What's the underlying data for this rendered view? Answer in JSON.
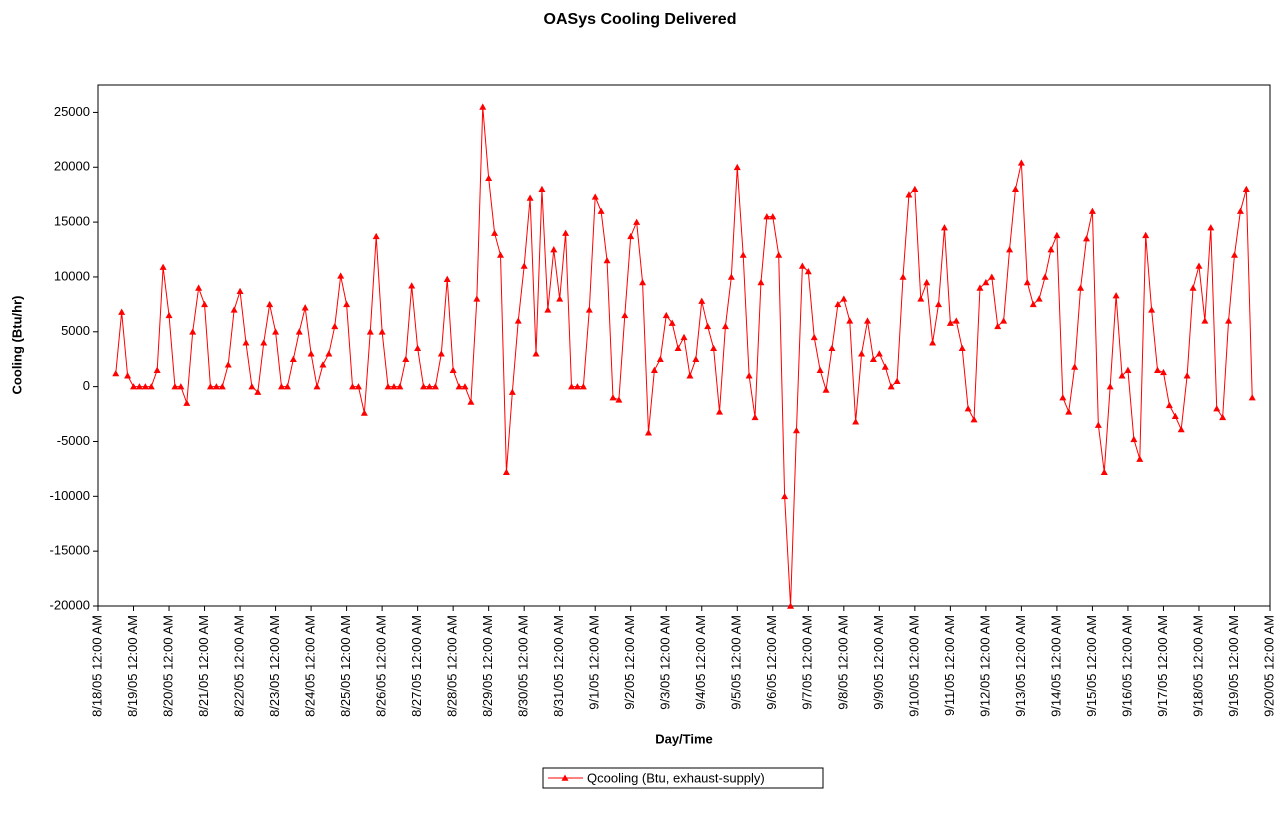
{
  "chart_data": {
    "type": "line",
    "title": "OASys Cooling Delivered",
    "xlabel": "Day/Time",
    "ylabel": "Cooling (Btu/hr)",
    "legend": "bottom",
    "marker": "triangle",
    "xlim": [
      0,
      792
    ],
    "ylim": [
      -20000,
      27500
    ],
    "yticks": [
      -20000,
      -15000,
      -10000,
      -5000,
      0,
      5000,
      10000,
      15000,
      20000,
      25000
    ],
    "xticks": [
      {
        "value": 0,
        "label": "8/18/05 12:00 AM"
      },
      {
        "value": 24,
        "label": "8/19/05 12:00 AM"
      },
      {
        "value": 48,
        "label": "8/20/05 12:00 AM"
      },
      {
        "value": 72,
        "label": "8/21/05 12:00 AM"
      },
      {
        "value": 96,
        "label": "8/22/05 12:00 AM"
      },
      {
        "value": 120,
        "label": "8/23/05 12:00 AM"
      },
      {
        "value": 144,
        "label": "8/24/05 12:00 AM"
      },
      {
        "value": 168,
        "label": "8/25/05 12:00 AM"
      },
      {
        "value": 192,
        "label": "8/26/05 12:00 AM"
      },
      {
        "value": 216,
        "label": "8/27/05 12:00 AM"
      },
      {
        "value": 240,
        "label": "8/28/05 12:00 AM"
      },
      {
        "value": 264,
        "label": "8/29/05 12:00 AM"
      },
      {
        "value": 288,
        "label": "8/30/05 12:00 AM"
      },
      {
        "value": 312,
        "label": "8/31/05 12:00 AM"
      },
      {
        "value": 336,
        "label": "9/1/05 12:00 AM"
      },
      {
        "value": 360,
        "label": "9/2/05 12:00 AM"
      },
      {
        "value": 384,
        "label": "9/3/05 12:00 AM"
      },
      {
        "value": 408,
        "label": "9/4/05 12:00 AM"
      },
      {
        "value": 432,
        "label": "9/5/05 12:00 AM"
      },
      {
        "value": 456,
        "label": "9/6/05 12:00 AM"
      },
      {
        "value": 480,
        "label": "9/7/05 12:00 AM"
      },
      {
        "value": 504,
        "label": "9/8/05 12:00 AM"
      },
      {
        "value": 528,
        "label": "9/9/05 12:00 AM"
      },
      {
        "value": 552,
        "label": "9/10/05 12:00 AM"
      },
      {
        "value": 576,
        "label": "9/11/05 12:00 AM"
      },
      {
        "value": 600,
        "label": "9/12/05 12:00 AM"
      },
      {
        "value": 624,
        "label": "9/13/05 12:00 AM"
      },
      {
        "value": 648,
        "label": "9/14/05 12:00 AM"
      },
      {
        "value": 672,
        "label": "9/15/05 12:00 AM"
      },
      {
        "value": 696,
        "label": "9/16/05 12:00 AM"
      },
      {
        "value": 720,
        "label": "9/17/05 12:00 AM"
      },
      {
        "value": 744,
        "label": "9/18/05 12:00 AM"
      },
      {
        "value": 768,
        "label": "9/19/05 12:00 AM"
      },
      {
        "value": 792,
        "label": "9/20/05 12:00 AM"
      }
    ],
    "x": [
      12,
      16,
      20,
      24,
      28,
      32,
      36,
      40,
      44,
      48,
      52,
      56,
      60,
      64,
      68,
      72,
      76,
      80,
      84,
      88,
      92,
      96,
      100,
      104,
      108,
      112,
      116,
      120,
      124,
      128,
      132,
      136,
      140,
      144,
      148,
      152,
      156,
      160,
      164,
      168,
      172,
      176,
      180,
      184,
      188,
      192,
      196,
      200,
      204,
      208,
      212,
      216,
      220,
      224,
      228,
      232,
      236,
      240,
      244,
      248,
      252,
      256,
      260,
      264,
      268,
      272,
      276,
      280,
      284,
      288,
      292,
      296,
      300,
      304,
      308,
      312,
      316,
      320,
      324,
      328,
      332,
      336,
      340,
      344,
      348,
      352,
      356,
      360,
      364,
      368,
      372,
      376,
      380,
      384,
      388,
      392,
      396,
      400,
      404,
      408,
      412,
      416,
      420,
      424,
      428,
      432,
      436,
      440,
      444,
      448,
      452,
      456,
      460,
      464,
      468,
      472,
      476,
      480,
      484,
      488,
      492,
      496,
      500,
      504,
      508,
      512,
      516,
      520,
      524,
      528,
      532,
      536,
      540,
      544,
      548,
      552,
      556,
      560,
      564,
      568,
      572,
      576,
      580,
      584,
      588,
      592,
      596,
      600,
      604,
      608,
      612,
      616,
      620,
      624,
      628,
      632,
      636,
      640,
      644,
      648,
      652,
      656,
      660,
      664,
      668,
      672,
      676,
      680,
      684,
      688,
      692,
      696,
      700,
      704,
      708,
      712,
      716,
      720,
      724,
      728,
      732,
      736,
      740,
      744,
      748,
      752,
      756,
      760,
      764,
      768,
      772,
      776,
      780
    ],
    "series": [
      {
        "name": "Qcooling (Btu, exhaust-supply)",
        "color": "#ff0000",
        "values": [
          1200,
          6800,
          1000,
          0,
          0,
          0,
          0,
          1500,
          10900,
          6500,
          0,
          0,
          -1500,
          5000,
          9000,
          7500,
          0,
          0,
          0,
          2000,
          7000,
          8700,
          4000,
          0,
          -500,
          4000,
          7500,
          5000,
          0,
          0,
          2500,
          5000,
          7200,
          3000,
          0,
          2000,
          3000,
          5500,
          10100,
          7500,
          0,
          0,
          -2400,
          5000,
          13700,
          5000,
          0,
          0,
          0,
          2500,
          9200,
          3500,
          0,
          0,
          0,
          3000,
          9800,
          1500,
          0,
          0,
          -1400,
          8000,
          25500,
          19000,
          14000,
          12000,
          -7800,
          -500,
          6000,
          11000,
          17200,
          3000,
          18000,
          7000,
          12500,
          8000,
          14000,
          0,
          0,
          0,
          7000,
          17300,
          16000,
          11500,
          -1000,
          -1200,
          6500,
          13700,
          15000,
          9500,
          -4200,
          1500,
          2500,
          6500,
          5800,
          3500,
          4500,
          1000,
          2500,
          7800,
          5500,
          3500,
          -2300,
          5500,
          10000,
          20000,
          12000,
          1000,
          -2800,
          9500,
          15500,
          15500,
          12000,
          -10000,
          -20000,
          -4000,
          11000,
          10500,
          4500,
          1500,
          -300,
          3500,
          7500,
          8000,
          6000,
          -3200,
          3000,
          6000,
          2500,
          3000,
          1800,
          0,
          500,
          10000,
          17500,
          18000,
          8000,
          9500,
          4000,
          7500,
          14500,
          5800,
          6000,
          3500,
          -2000,
          -3000,
          9000,
          9500,
          10000,
          5500,
          6000,
          12500,
          18000,
          20400,
          9500,
          7500,
          8000,
          10000,
          12500,
          13800,
          -1000,
          -2300,
          1800,
          9000,
          13500,
          16000,
          -3500,
          -7800,
          0,
          8300,
          1000,
          1500,
          -4800,
          -6600,
          13800,
          7000,
          1500,
          1300,
          -1700,
          -2700,
          -3900,
          1000,
          9000,
          11000,
          6000,
          14500,
          -2000,
          -2800,
          6000,
          12000,
          16000,
          18000,
          -1000
        ]
      }
    ]
  }
}
